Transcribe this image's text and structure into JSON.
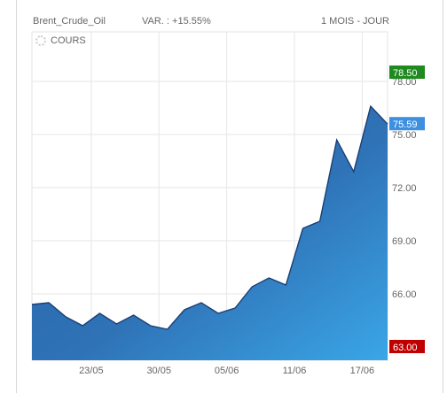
{
  "header": {
    "instrument": "Brent_Crude_Oil",
    "variation": "VAR. : +15.55%",
    "period": "1 MOIS - JOUR"
  },
  "legend": {
    "label": "COURS",
    "icon": "settings-icon"
  },
  "chart_data": {
    "type": "area",
    "title": "",
    "xlabel": "",
    "ylabel": "",
    "x_ticks": [
      "23/05",
      "30/05",
      "05/06",
      "11/06",
      "17/06"
    ],
    "y_ticks": [
      "63.00",
      "66.00",
      "69.00",
      "72.00",
      "75.00",
      "78.00"
    ],
    "ylim": [
      62.25,
      80.8
    ],
    "grid": true,
    "series": [
      {
        "values": [
          65.4,
          65.5,
          64.7,
          64.2,
          64.9,
          64.3,
          64.8,
          64.2,
          64.0,
          65.1,
          65.5,
          64.9,
          65.2,
          66.4,
          66.9,
          66.5,
          69.7,
          70.1,
          74.7,
          72.9,
          76.6,
          75.59
        ]
      }
    ],
    "x_tick_index": [
      3.5,
      7.5,
      11.5,
      15.5,
      19.5
    ],
    "badges": [
      {
        "value": "78.50",
        "y": 78.5,
        "color": "#1f8a1f"
      },
      {
        "value": "75.59",
        "y": 75.59,
        "color": "#3d8fe0"
      },
      {
        "value": "63.00",
        "y": 63.0,
        "color": "#c00000"
      }
    ]
  }
}
